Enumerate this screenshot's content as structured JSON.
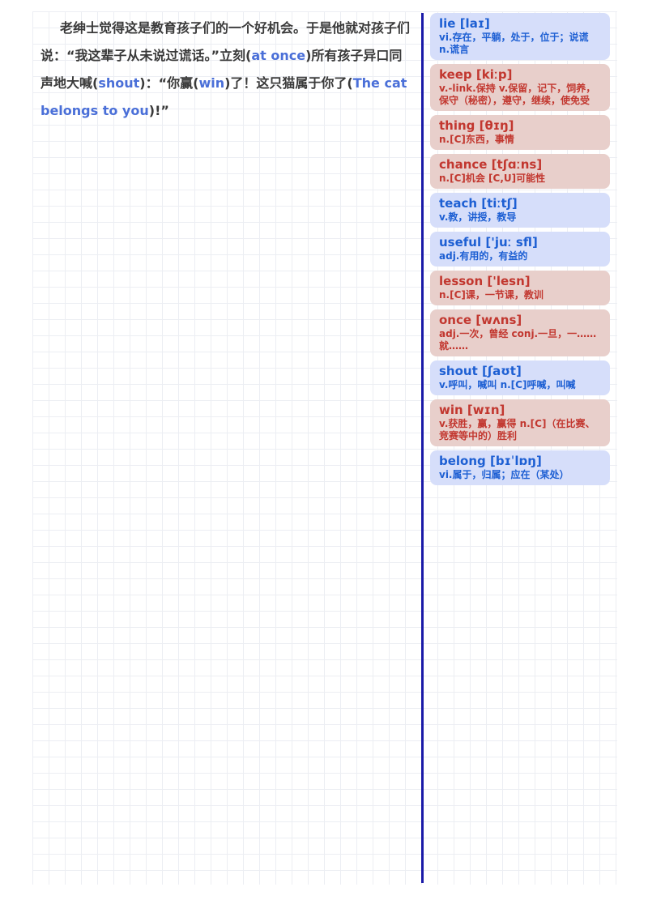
{
  "passage": {
    "segments": [
      {
        "text": "老绅士觉得这是教育孩子们的一个好机会。于是他就对孩子们说：“我这辈子从未说过谎话。”立刻(",
        "hl": false
      },
      {
        "text": "at once",
        "hl": true
      },
      {
        "text": ")所有孩子异口同声地大喊(",
        "hl": false
      },
      {
        "text": "shout",
        "hl": true
      },
      {
        "text": ")：“你赢(",
        "hl": false
      },
      {
        "text": "win",
        "hl": true
      },
      {
        "text": ")了！这只猫属于你了(",
        "hl": false
      },
      {
        "text": "The cat belongs to you",
        "hl": true
      },
      {
        "text": ")!”",
        "hl": false
      }
    ]
  },
  "vocab": [
    {
      "word": "lie",
      "phonetic": "[laɪ]",
      "definition": "vi.存在，平躺，处于，位于；说谎 n.谎言",
      "color": "blue"
    },
    {
      "word": "keep",
      "phonetic": "[kiːp]",
      "definition": "v.-link.保持 v.保留，记下，饲养，保守（秘密），遵守，继续，使免受",
      "color": "red"
    },
    {
      "word": "thing",
      "phonetic": "[θɪŋ]",
      "definition": "n.[C]东西，事情",
      "color": "red"
    },
    {
      "word": "chance",
      "phonetic": "[tʃɑːns]",
      "definition": "n.[C]机会 [C,U]可能性",
      "color": "red"
    },
    {
      "word": "teach",
      "phonetic": "[tiːtʃ]",
      "definition": "v.教，讲授，教导",
      "color": "blue"
    },
    {
      "word": "useful",
      "phonetic": "['juː sfl]",
      "definition": "adj.有用的，有益的",
      "color": "blue"
    },
    {
      "word": "lesson",
      "phonetic": "['lesn]",
      "definition": "n.[C]课，一节课，教训",
      "color": "red"
    },
    {
      "word": "once",
      "phonetic": "[wʌns]",
      "definition": "adj.一次，曾经 conj.一旦，一……就……",
      "color": "red"
    },
    {
      "word": "shout",
      "phonetic": "[ʃaʊt]",
      "definition": "v.呼叫，喊叫 n.[C]呼喊，叫喊",
      "color": "blue"
    },
    {
      "word": "win",
      "phonetic": "[wɪn]",
      "definition": "v.获胜，赢，赢得 n.[C]（在比赛、竞赛等中的）胜利",
      "color": "red"
    },
    {
      "word": "belong",
      "phonetic": "[bɪˈlɒŋ]",
      "definition": "vi.属于，归属；应在（某处）",
      "color": "blue"
    }
  ]
}
